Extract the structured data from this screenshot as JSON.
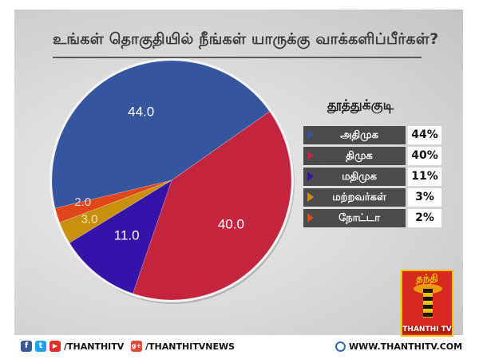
{
  "title": "உங்கள் தொகுதியில் நீங்கள் யாருக்கு வாக்களிப்பீர்கள்?",
  "chart_data": {
    "type": "pie",
    "legend_title": "தூத்துக்குடி",
    "legend_position": "right",
    "slices": [
      {
        "label": "அதிமுக",
        "value": 44.0,
        "value_text": "44.0",
        "percent_text": "44%",
        "color": "#35569e",
        "text_color": "#ffffff"
      },
      {
        "label": "திமுக",
        "value": 40.0,
        "value_text": "40.0",
        "percent_text": "40%",
        "color": "#c3253f",
        "text_color": "#ffffff"
      },
      {
        "label": "மதிமுக",
        "value": 11.0,
        "value_text": "11.0",
        "percent_text": "11%",
        "color": "#3512a8",
        "text_color": "#ffffff"
      },
      {
        "label": "மற்றவர்கள்",
        "value": 3.0,
        "value_text": "3.0",
        "percent_text": "3%",
        "color": "#c9900d",
        "text_color": "#f1e2b0"
      },
      {
        "label": "நோட்டா",
        "value": 2.0,
        "value_text": "2.0",
        "percent_text": "2%",
        "color": "#e0461c",
        "text_color": "#f6d2c2"
      }
    ]
  },
  "logo": {
    "top_text": "தந்தி",
    "bottom_text": "THANTHI TV"
  },
  "footer": {
    "facebook_icon": "f",
    "twitter_icon": "t",
    "youtube_icon": "▶",
    "handle": "/THANTHITV",
    "googleplus_icon": "g+",
    "news_handle": "/THANTHITVNEWS",
    "website": "WWW.THANTHITV.COM"
  }
}
